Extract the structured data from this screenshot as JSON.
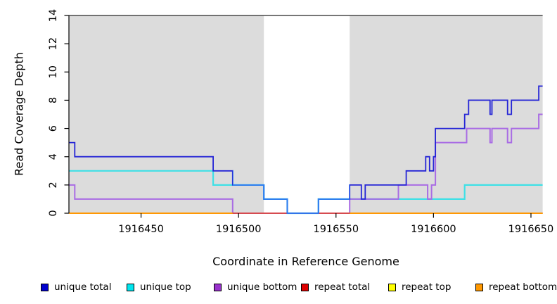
{
  "chart_data": {
    "type": "line",
    "subtype": "step",
    "title": "",
    "xlabel": "Coordinate in Reference Genome",
    "ylabel": "Read Coverage Depth",
    "xlim": [
      1916413,
      1916656
    ],
    "ylim": [
      0,
      14
    ],
    "grid": false,
    "x_ticks": [
      1916450,
      1916500,
      1916550,
      1916600,
      1916650
    ],
    "y_ticks": [
      0,
      2,
      4,
      6,
      8,
      10,
      12,
      14
    ],
    "plot_background_color": "#dcdcdc",
    "uncovered_band": {
      "x0": 1916513,
      "x1": 1916557,
      "color": "#ffffff"
    },
    "series": [
      {
        "name": "unique top",
        "color": "#3fe0e6",
        "width": 2.2,
        "segments": [
          {
            "steps": [
              [
                1916413,
                3
              ],
              [
                1916487,
                2
              ],
              [
                1916513,
                1
              ],
              [
                1916525,
                0
              ],
              [
                1916541,
                1
              ],
              [
                1916616,
                2
              ]
            ],
            "end": 1916656
          }
        ]
      },
      {
        "name": "unique bottom",
        "color": "#a96ce4",
        "width": 2.0,
        "segments": [
          {
            "steps": [
              [
                1916413,
                2
              ],
              [
                1916416,
                1
              ],
              [
                1916497,
                0
              ],
              [
                1916557,
                1
              ],
              [
                1916582,
                2
              ],
              [
                1916597,
                1
              ],
              [
                1916599,
                2
              ],
              [
                1916601,
                5
              ],
              [
                1916617,
                6
              ],
              [
                1916629,
                5
              ],
              [
                1916630,
                6
              ],
              [
                1916638,
                5
              ],
              [
                1916640,
                6
              ],
              [
                1916654,
                7
              ]
            ],
            "end": 1916656
          }
        ]
      },
      {
        "name": "repeat top",
        "color": "#ffef00",
        "width": 1.4,
        "segments": [
          {
            "steps": [
              [
                1916413,
                0
              ]
            ],
            "end": 1916656
          }
        ]
      },
      {
        "name": "repeat total",
        "color": "#d62a44",
        "width": 1.4,
        "segments": [
          {
            "steps": [
              [
                1916413,
                0
              ]
            ],
            "end": 1916656
          }
        ]
      },
      {
        "name": "repeat bottom",
        "color": "#ff9803",
        "width": 2.0,
        "segments": [
          {
            "steps": [
              [
                1916413,
                0
              ]
            ],
            "end": 1916497
          },
          {
            "steps": [
              [
                1916557,
                0
              ]
            ],
            "end": 1916656
          }
        ]
      },
      {
        "name": "unique total",
        "color": "#2525d6",
        "width": 1.8,
        "bright_overlay": {
          "range": [
            1916497,
            1916557
          ],
          "color": "#2f7df2"
        },
        "segments": [
          {
            "steps": [
              [
                1916413,
                5
              ],
              [
                1916416,
                4
              ],
              [
                1916487,
                3
              ],
              [
                1916497,
                2
              ],
              [
                1916513,
                1
              ],
              [
                1916525,
                0
              ],
              [
                1916541,
                1
              ],
              [
                1916557,
                2
              ],
              [
                1916563,
                1
              ],
              [
                1916565,
                2
              ],
              [
                1916586,
                3
              ],
              [
                1916596,
                4
              ],
              [
                1916598,
                3
              ],
              [
                1916600,
                4
              ],
              [
                1916601,
                6
              ],
              [
                1916616,
                7
              ],
              [
                1916618,
                8
              ],
              [
                1916629,
                7
              ],
              [
                1916630,
                8
              ],
              [
                1916638,
                7
              ],
              [
                1916640,
                8
              ],
              [
                1916654,
                9
              ]
            ],
            "end": 1916656
          }
        ]
      }
    ],
    "legend": {
      "position": "bottom",
      "items": [
        {
          "label": "unique total",
          "color": "#0000cd"
        },
        {
          "label": "unique top",
          "color": "#00e5ee"
        },
        {
          "label": "unique bottom",
          "color": "#9932cc"
        },
        {
          "label": "repeat total",
          "color": "#dd0000"
        },
        {
          "label": "repeat top",
          "color": "#ffff00"
        },
        {
          "label": "repeat bottom",
          "color": "#ff9800"
        }
      ]
    },
    "axis_color": "#000000",
    "top_border_color": "#484848"
  }
}
